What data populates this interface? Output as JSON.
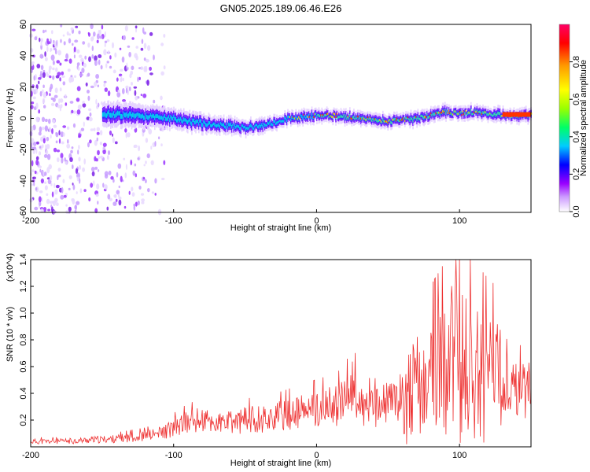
{
  "title": "GN05.2025.189.06.46.E26",
  "chart_data": [
    {
      "type": "heatmap",
      "xlabel": "Height of straight line (km)",
      "ylabel": "Frequency (Hz)",
      "xlim": [
        -200,
        150
      ],
      "ylim": [
        -60,
        60
      ],
      "xticks": [
        -200,
        -100,
        0,
        100
      ],
      "yticks": [
        -60,
        -40,
        -20,
        0,
        20,
        40,
        60
      ],
      "grid": false,
      "colorbar": {
        "label": "Normalized spectral amplitude",
        "range": [
          0,
          1
        ],
        "ticks": [
          "0.0",
          "0.2",
          "0.4",
          "0.6",
          "0.8"
        ],
        "colors": [
          "#ffffff",
          "#cc99ff",
          "#9900ff",
          "#0000ff",
          "#00ccff",
          "#00ff66",
          "#99ff00",
          "#ffff00",
          "#ff9900",
          "#ff0000",
          "#ff0066"
        ]
      },
      "ridge": {
        "x": [
          -150,
          -130,
          -110,
          -100,
          -90,
          -80,
          -70,
          -60,
          -50,
          -40,
          -30,
          -20,
          -10,
          0,
          10,
          20,
          30,
          40,
          50,
          60,
          70,
          80,
          90,
          100,
          110,
          120,
          130,
          150
        ],
        "y": [
          3,
          2,
          1,
          0,
          -2,
          -3,
          -4,
          -5,
          -6,
          -5,
          -3,
          0,
          1,
          2,
          2,
          1,
          0,
          -1,
          -2,
          -1,
          0,
          2,
          4,
          3,
          4,
          3,
          2,
          2
        ]
      }
    },
    {
      "type": "line",
      "xlabel": "Height of straight line (km)",
      "ylabel": "SNR (10 * v/v)",
      "y_multiplier": "(x10^4)",
      "xlim": [
        -200,
        150
      ],
      "ylim": [
        0,
        1.4
      ],
      "xticks": [
        -200,
        -100,
        0,
        100
      ],
      "yticks": [
        "0.2",
        "0.4",
        "0.6",
        "0.8",
        "1.0",
        "1.2",
        "1.4"
      ],
      "series": [
        {
          "color": "#ee3333",
          "x": [
            -200,
            -180,
            -160,
            -140,
            -120,
            -110,
            -100,
            -90,
            -80,
            -70,
            -60,
            -50,
            -40,
            -30,
            -20,
            -10,
            0,
            10,
            20,
            25,
            30,
            40,
            50,
            60,
            70,
            80,
            90,
            95,
            100,
            110,
            120,
            130,
            140,
            150
          ],
          "y": [
            0.04,
            0.04,
            0.05,
            0.06,
            0.08,
            0.1,
            0.14,
            0.18,
            0.2,
            0.17,
            0.18,
            0.2,
            0.21,
            0.22,
            0.24,
            0.26,
            0.28,
            0.3,
            0.33,
            0.45,
            0.3,
            0.28,
            0.33,
            0.38,
            0.42,
            0.48,
            0.55,
            0.65,
            0.6,
            0.55,
            0.5,
            0.46,
            0.42,
            0.43
          ]
        }
      ]
    }
  ]
}
